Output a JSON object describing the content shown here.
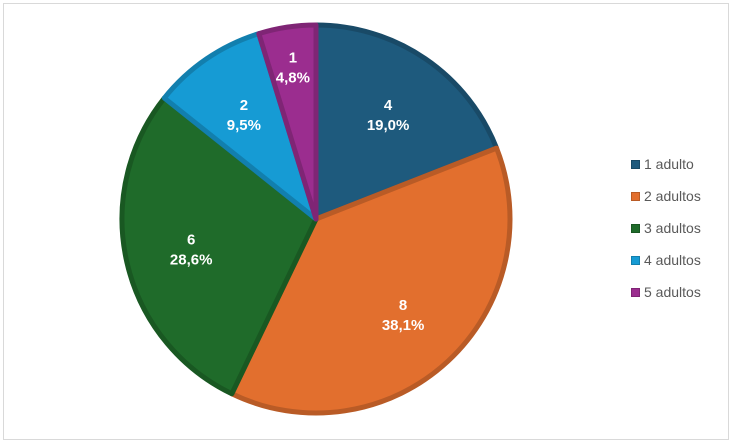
{
  "chart_data": {
    "type": "pie",
    "categories": [
      "1 adulto",
      "2 adultos",
      "3 adultos",
      "4 adultos",
      "5 adultos"
    ],
    "values": [
      4,
      8,
      6,
      2,
      1
    ],
    "percentages": [
      "19,0%",
      "38,1%",
      "28,6%",
      "9,5%",
      "4,8%"
    ],
    "labels": [
      {
        "value": "4",
        "percent": "19,0%"
      },
      {
        "value": "8",
        "percent": "38,1%"
      },
      {
        "value": "6",
        "percent": "28,6%"
      },
      {
        "value": "2",
        "percent": "9,5%"
      },
      {
        "value": "1",
        "percent": "4,8%"
      }
    ],
    "colors": [
      "#1e5a7d",
      "#e26f2e",
      "#1f6b2a",
      "#169bd4",
      "#9b2d8f"
    ],
    "legend_position": "right",
    "title": "",
    "xlabel": "",
    "ylabel": ""
  },
  "legend": {
    "items": [
      {
        "label": "1 adulto",
        "color": "#1e5a7d"
      },
      {
        "label": "2 adultos",
        "color": "#e26f2e"
      },
      {
        "label": "3 adultos",
        "color": "#1f6b2a"
      },
      {
        "label": "4 adultos",
        "color": "#169bd4"
      },
      {
        "label": "5 adultos",
        "color": "#9b2d8f"
      }
    ]
  }
}
